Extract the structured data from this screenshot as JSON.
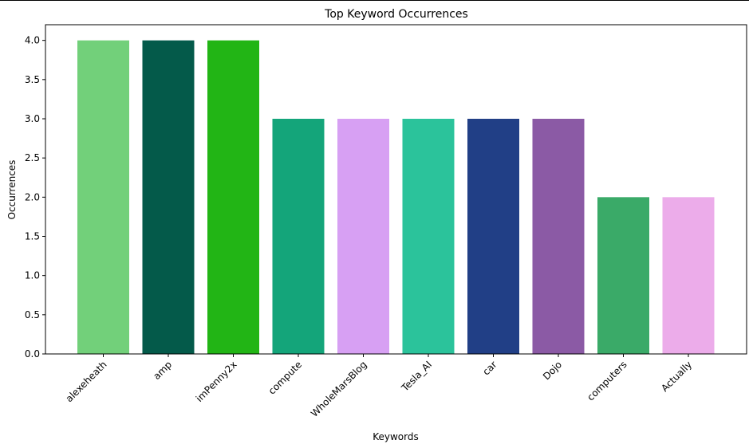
{
  "chart_data": {
    "type": "bar",
    "title": "Top Keyword Occurrences",
    "xlabel": "Keywords",
    "ylabel": "Occurrences",
    "categories": [
      "alexeheath",
      "amp",
      "imPenny2x",
      "compute",
      "WholeMarsBlog",
      "Tesla_AI",
      "car",
      "Dojo",
      "computers",
      "Actually"
    ],
    "values": [
      4,
      4,
      4,
      3,
      3,
      3,
      3,
      3,
      2,
      2
    ],
    "colors": [
      "#72d07a",
      "#045a4a",
      "#22b515",
      "#14a57a",
      "#d7a0f3",
      "#2bc39b",
      "#213f86",
      "#8b5aa5",
      "#3aaa68",
      "#ecacea"
    ],
    "ylim": [
      0,
      4.2
    ],
    "yticks": [
      "0.0",
      "0.5",
      "1.0",
      "1.5",
      "2.0",
      "2.5",
      "3.0",
      "3.5",
      "4.0"
    ],
    "grid": false,
    "legend": "none"
  }
}
